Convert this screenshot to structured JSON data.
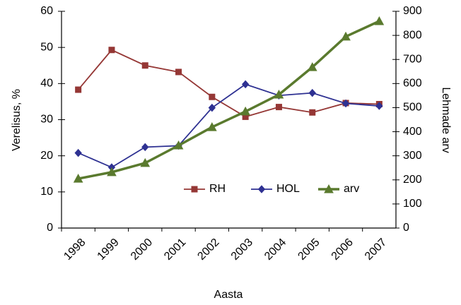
{
  "chart_data": {
    "type": "line",
    "categories": [
      "1998",
      "1999",
      "2000",
      "2001",
      "2002",
      "2003",
      "2004",
      "2005",
      "2006",
      "2007"
    ],
    "series": [
      {
        "name": "RH",
        "color": "#953735",
        "marker": "square",
        "values": [
          38.3,
          49.3,
          45,
          43.2,
          36.3,
          30.8,
          33.5,
          32,
          34.6,
          34.3
        ]
      },
      {
        "name": "HOL",
        "color": "#2e3192",
        "marker": "diamond",
        "values": [
          20.8,
          16.8,
          22.4,
          22.8,
          33.3,
          39.8,
          36.7,
          37.4,
          34.5,
          33.8
        ]
      },
      {
        "name": "arv",
        "color": "#5a7a2e",
        "marker": "triangle",
        "axis": "y2",
        "values": [
          205,
          232,
          270,
          343,
          419,
          484,
          554,
          668,
          795,
          859
        ]
      }
    ],
    "ylabel": "Verelisus, %",
    "y2label": "Lehmade arv",
    "xlabel": "Aasta",
    "ylim": [
      0,
      60
    ],
    "yticks": [
      0,
      10,
      20,
      30,
      40,
      50,
      60
    ],
    "y2lim": [
      0,
      900
    ],
    "y2ticks": [
      0,
      100,
      200,
      300,
      400,
      500,
      600,
      700,
      800,
      900
    ],
    "legend": "lower right",
    "grid": false
  }
}
